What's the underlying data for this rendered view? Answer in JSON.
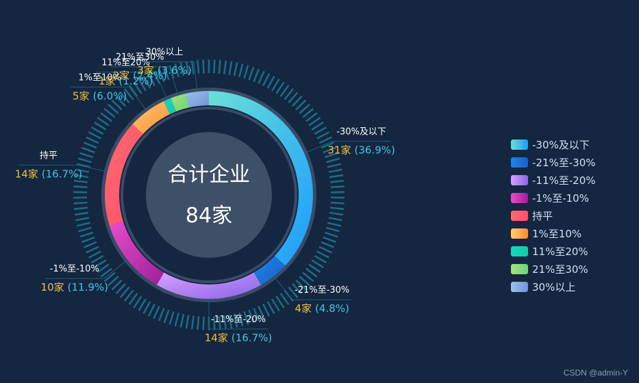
{
  "chart_data": {
    "type": "pie",
    "title": "合计企业",
    "total_label": "84家",
    "categories": [
      "-30%及以下",
      "-21%至-30%",
      "-11%至-20%",
      "-1%至-10%",
      "持平",
      "1%至10%",
      "11%至20%",
      "21%至30%",
      "30%以上"
    ],
    "counts": [
      31,
      4,
      14,
      10,
      14,
      5,
      1,
      2,
      3
    ],
    "count_labels": [
      "31家",
      "4家",
      "14家",
      "10家",
      "14家",
      "5家",
      "1家",
      "2家",
      "3家"
    ],
    "percent_labels": [
      "(36.9%)",
      "(4.8%)",
      "(16.7%)",
      "(11.9%)",
      "(16.7%)",
      "(6.0%)",
      "(1.2%)",
      "(2.4%)",
      "(3.6%)"
    ],
    "colors": [
      [
        "#6ae0d6",
        "#1a9cff"
      ],
      [
        "#1f86e8",
        "#1660c6"
      ],
      [
        "#d6a2ff",
        "#8a62e6"
      ],
      [
        "#e84ec8",
        "#9c1f9a"
      ],
      [
        "#ff6a6f",
        "#ff4f6a"
      ],
      [
        "#ffcd6a",
        "#ff8a3c"
      ],
      [
        "#13d9c0",
        "#13c9a8"
      ],
      [
        "#a8e07a",
        "#6cd47a"
      ],
      [
        "#9ec0ec",
        "#6f94d4"
      ]
    ],
    "legend_position": "right"
  },
  "watermark": "CSDN @admin-Y"
}
